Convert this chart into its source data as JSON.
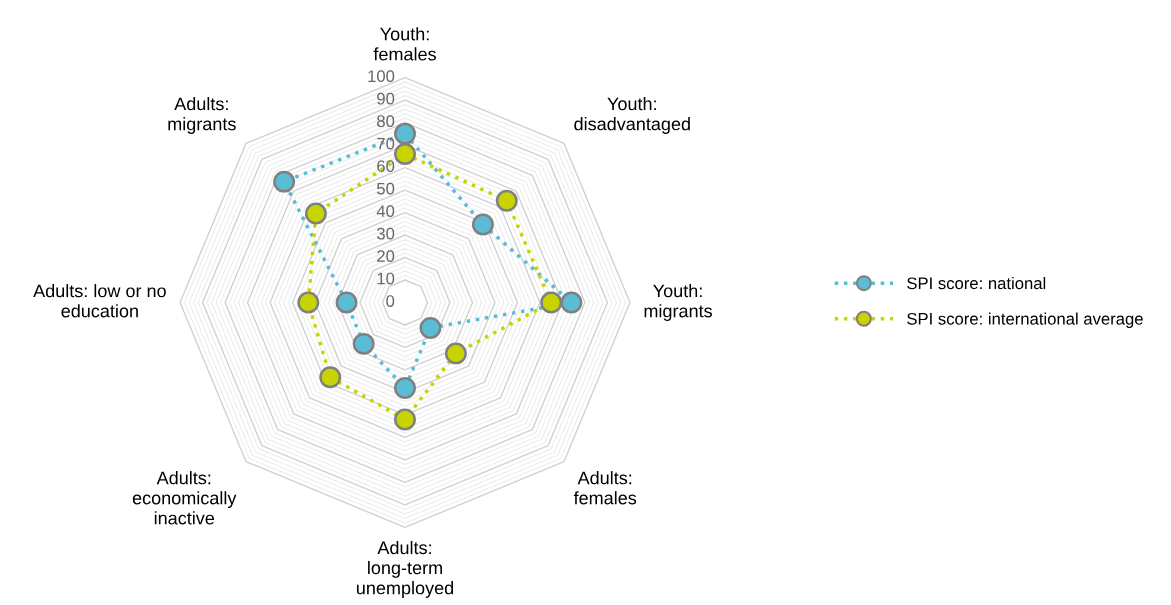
{
  "chart_data": {
    "type": "radar",
    "categories": [
      "Youth:\nfemales",
      "Youth:\ndisadvantaged",
      "Youth:\nmigrants",
      "Adults:\nfemales",
      "Adults:\nlong-term\nunemployed",
      "Adults:\neconomically\ninactive",
      "Adults: low or no\neducation",
      "Adults:\nmigrants"
    ],
    "series": [
      {
        "name": "SPI score: national",
        "color": "#5bbcd6",
        "values": [
          75,
          49,
          74,
          16,
          38,
          26,
          26,
          76
        ]
      },
      {
        "name": "SPI score: international average",
        "color": "#c8d400",
        "values": [
          66,
          64,
          65,
          32,
          52,
          47,
          43,
          56
        ]
      }
    ],
    "ylim": [
      0,
      100
    ],
    "yticks": [
      0,
      10,
      20,
      30,
      40,
      50,
      60,
      70,
      80,
      90,
      100
    ],
    "grid": true,
    "legend": "right",
    "marker": "circle",
    "line_style": "dotted"
  }
}
